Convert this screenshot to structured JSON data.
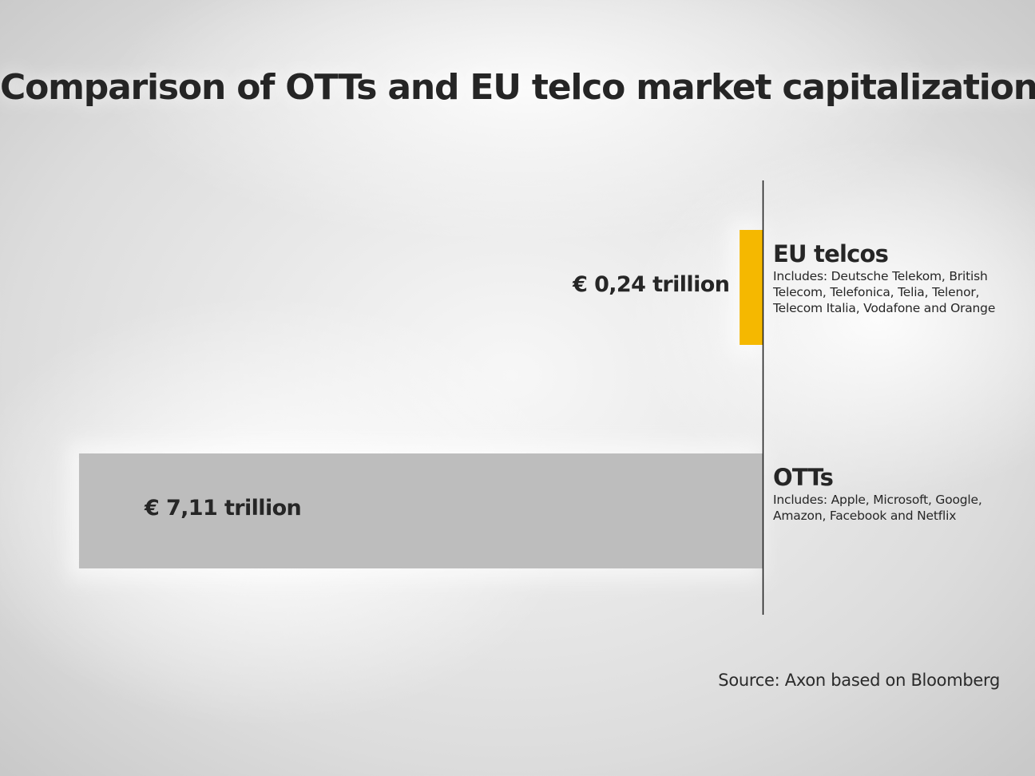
{
  "chart_data": {
    "type": "bar",
    "orientation": "horizontal",
    "title": "Comparison of OTTs and EU telco market capitalization",
    "unit": "€ trillion",
    "categories": [
      "EU telcos",
      "OTTs"
    ],
    "values": [
      0.24,
      7.11
    ],
    "value_labels": [
      "€ 0,24 trillion",
      "€ 7,11 trillion"
    ],
    "descriptions": [
      "Includes: Deutsche Telekom, British Telecom, Telefonica, Telia, Telenor, Telecom Italia, Vodafone and Orange",
      "Includes: Apple, Microsoft, Google, Amazon, Facebook and Netflix"
    ],
    "colors": [
      "#f5b800",
      "#bdbdbd"
    ],
    "grid": false,
    "legend": "none"
  },
  "source": "Source: Axon based on Bloomberg"
}
